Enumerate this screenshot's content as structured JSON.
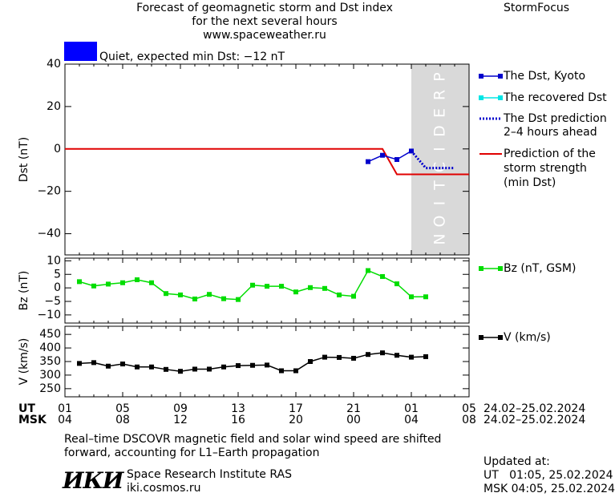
{
  "header": {
    "title_line1": "Forecast of geomagnetic storm and Dst index",
    "title_line2": "for the next several hours",
    "url": "www.spaceweather.ru",
    "brand": "StormFocus"
  },
  "status": {
    "text": "Quiet, expected min Dst: −12 nT",
    "color": "#0000ff"
  },
  "legend": {
    "dst_kyoto": "The Dst, Kyoto",
    "recovered": "The recovered Dst",
    "prediction_line1": "The Dst prediction",
    "prediction_line2": "2–4 hours ahead",
    "storm_line1": "Prediction of the",
    "storm_line2": "storm strength",
    "storm_line3": "(min Dst)",
    "bz": "Bz (nT, GSM)",
    "v": "V (km/s)"
  },
  "prediction_label": "PREDICTION",
  "time_axis": {
    "ut_label": "UT",
    "msk_label": "MSK",
    "ut_ticks": [
      "01",
      "05",
      "09",
      "13",
      "17",
      "21",
      "01",
      "05"
    ],
    "msk_ticks": [
      "04",
      "08",
      "12",
      "16",
      "20",
      "00",
      "04",
      "08"
    ],
    "ut_range": "24.02–25.02.2024",
    "msk_range": "24.02–25.02.2024"
  },
  "footer": {
    "note_line1": "Real–time DSCOVR magnetic field and solar wind speed are shifted",
    "note_line2": "forward, accounting for L1–Earth propagation",
    "logo_text": "ИКИ",
    "institute": "Space Research Institute RAS",
    "site": "iki.cosmos.ru",
    "updated_label": "Updated at:",
    "updated_ut": "UT   01:05, 25.02.2024",
    "updated_msk": "MSK 04:05, 25.02.2024"
  },
  "colors": {
    "dst": "#0000cc",
    "recovered": "#00e5e5",
    "prediction": "#0000cc",
    "storm": "#e00000",
    "bz": "#00dd00",
    "v": "#000000",
    "prediction_band": "#d9d9d9"
  },
  "chart_data": [
    {
      "type": "line",
      "ylabel": "Dst (nT)",
      "ylim": [
        -50,
        40
      ],
      "yticks": [
        40,
        20,
        0,
        -20,
        -40
      ],
      "xlim": [
        0,
        28
      ],
      "prediction_band": [
        24,
        28
      ],
      "series": [
        {
          "name": "The Dst, Kyoto",
          "x": [
            21,
            22,
            23,
            24
          ],
          "y": [
            -6,
            -3,
            -5,
            -1
          ]
        },
        {
          "name": "The Dst prediction 2–4 hours ahead",
          "x": [
            24,
            25,
            26,
            27
          ],
          "y": [
            -1,
            -9,
            -9,
            -9
          ]
        },
        {
          "name": "Prediction of the storm strength (min Dst)",
          "x": [
            0,
            22,
            23,
            28
          ],
          "y": [
            0,
            0,
            -12,
            -12
          ]
        }
      ]
    },
    {
      "type": "line",
      "ylabel": "Bz (nT)",
      "ylim": [
        -13,
        11
      ],
      "yticks": [
        10,
        5,
        0,
        -5,
        -10
      ],
      "xlim": [
        0,
        28
      ],
      "series": [
        {
          "name": "Bz (nT, GSM)",
          "x": [
            1,
            2,
            3,
            4,
            5,
            6,
            7,
            8,
            9,
            10,
            11,
            12,
            13,
            14,
            15,
            16,
            17,
            18,
            19,
            20,
            21,
            22,
            23,
            24,
            25
          ],
          "y": [
            2.3,
            0.7,
            1.4,
            1.9,
            3.0,
            1.9,
            -2.1,
            -2.6,
            -4.1,
            -2.4,
            -4.0,
            -4.3,
            1.0,
            0.6,
            0.6,
            -1.5,
            0.1,
            -0.2,
            -2.6,
            -3.1,
            6.4,
            4.2,
            1.5,
            -3.3,
            -3.3
          ]
        }
      ]
    },
    {
      "type": "line",
      "ylabel": "V (km/s)",
      "ylim": [
        220,
        480
      ],
      "yticks": [
        450,
        400,
        350,
        300,
        250
      ],
      "xlim": [
        0,
        28
      ],
      "series": [
        {
          "name": "V (km/s)",
          "x": [
            1,
            2,
            3,
            4,
            5,
            6,
            7,
            8,
            9,
            10,
            11,
            12,
            13,
            14,
            15,
            16,
            17,
            18,
            19,
            20,
            21,
            22,
            23,
            24,
            25
          ],
          "y": [
            343,
            346,
            333,
            341,
            330,
            330,
            321,
            314,
            322,
            322,
            330,
            335,
            336,
            337,
            316,
            316,
            350,
            366,
            365,
            362,
            376,
            382,
            373,
            366,
            368
          ]
        }
      ]
    }
  ]
}
